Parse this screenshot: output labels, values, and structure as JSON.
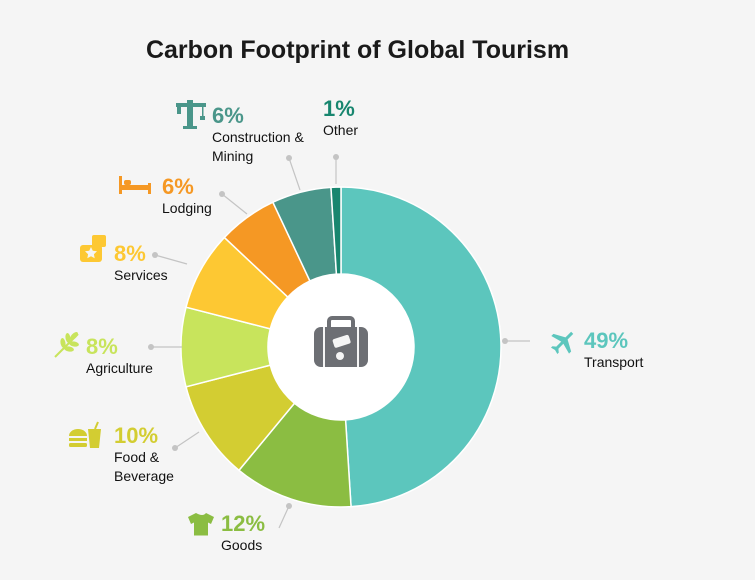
{
  "chart_data": {
    "type": "pie",
    "title": "Carbon Footprint of Global Tourism",
    "unit": "%",
    "slices": [
      {
        "name": "Transport",
        "value": 49,
        "pct_label": "49%",
        "color": "#5cc6bd",
        "icon": "airplane-icon"
      },
      {
        "name": "Goods",
        "value": 12,
        "pct_label": "12%",
        "color": "#8bbd42",
        "icon": "tshirt-icon"
      },
      {
        "name": "Food & Beverage",
        "value": 10,
        "pct_label": "10%",
        "color": "#d3cd32",
        "icon": "burger-drink-icon"
      },
      {
        "name": "Agriculture",
        "value": 8,
        "pct_label": "8%",
        "color": "#c8e45c",
        "icon": "wheat-icon"
      },
      {
        "name": "Services",
        "value": 8,
        "pct_label": "8%",
        "color": "#fdc833",
        "icon": "services-icon"
      },
      {
        "name": "Lodging",
        "value": 6,
        "pct_label": "6%",
        "color": "#f59824",
        "icon": "bed-icon"
      },
      {
        "name": "Construction & Mining",
        "value": 6,
        "pct_label": "6%",
        "color": "#4a968a",
        "icon": "crane-icon"
      },
      {
        "name": "Other",
        "value": 1,
        "pct_label": "1%",
        "color": "#18866f",
        "icon": ""
      }
    ],
    "center_icon": "suitcase-icon",
    "legend": "none"
  }
}
